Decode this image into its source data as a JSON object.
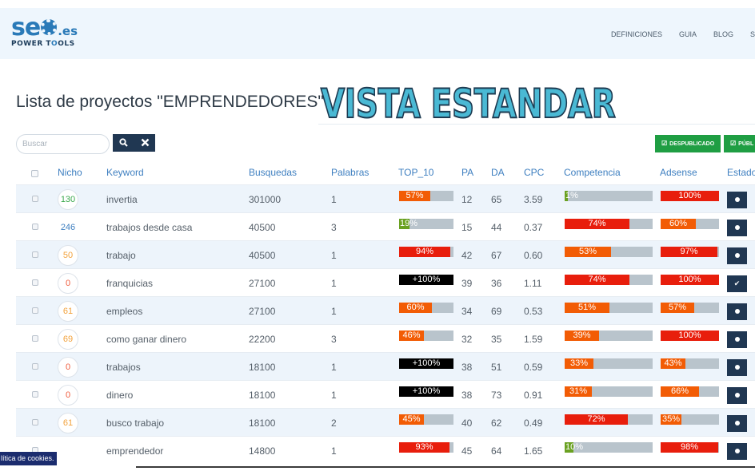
{
  "colors": {
    "navy": "#203752",
    "green": "#1f9e43",
    "link_blue": "#3e7fc0",
    "red": "#e81e0c",
    "orange": "#f25c05",
    "black": "#000000",
    "olive": "#6aa121",
    "track": "#b9c4cc"
  },
  "logo": {
    "seo": "se",
    "tld": ".es",
    "sub_a": "POWER T",
    "sub_b": "OLS"
  },
  "nav": [
    "DEFINICIONES",
    "GUIA",
    "BLOG",
    "SE"
  ],
  "title": "Lista de proyectos \"EMPRENDEDORES\"",
  "overlay": "VISTA ESTANDAR",
  "search": {
    "placeholder": "Buscar",
    "search_icon": "search-icon",
    "clear_icon": "close-icon"
  },
  "buttons": {
    "despublicado": "DESPUBLICADO",
    "publicado": "PÚBL"
  },
  "headers": {
    "nicho": "Nicho",
    "keyword": "Keyword",
    "busquedas": "Busquedas",
    "palabras": "Palabras",
    "top10": "TOP_10",
    "pa": "PA",
    "da": "DA",
    "cpc": "CPC",
    "competencia": "Competencia",
    "adsense": "Adsense",
    "estado": "Estado"
  },
  "rows": [
    {
      "nicho": "130",
      "nicho_color": "#3aa84b",
      "keyword": "invertia",
      "busquedas": "301000",
      "palabras": "1",
      "top10": {
        "label": "57%",
        "value": 57,
        "color": "#f25c05"
      },
      "pa": "12",
      "da": "65",
      "cpc": "3.59",
      "competencia": {
        "label": "1%",
        "value": 1,
        "color": "#6aa121"
      },
      "adsense": {
        "label": "100%",
        "value": 100,
        "color": "#e81e0c"
      },
      "estado": "dot"
    },
    {
      "nicho": "246",
      "nicho_color": "#3e7fc0",
      "keyword": "trabajos desde casa",
      "busquedas": "40500",
      "palabras": "3",
      "top10": {
        "label": "19%",
        "value": 19,
        "color": "#6aa121"
      },
      "pa": "15",
      "da": "44",
      "cpc": "0.37",
      "competencia": {
        "label": "74%",
        "value": 74,
        "color": "#e81e0c"
      },
      "adsense": {
        "label": "60%",
        "value": 60,
        "color": "#f25c05"
      },
      "estado": "dot"
    },
    {
      "nicho": "50",
      "nicho_color": "#f2a23c",
      "keyword": "trabajo",
      "busquedas": "40500",
      "palabras": "1",
      "top10": {
        "label": "94%",
        "value": 94,
        "color": "#e81e0c"
      },
      "pa": "42",
      "da": "67",
      "cpc": "0.60",
      "competencia": {
        "label": "53%",
        "value": 53,
        "color": "#f25c05"
      },
      "adsense": {
        "label": "97%",
        "value": 97,
        "color": "#e81e0c"
      },
      "estado": "dot"
    },
    {
      "nicho": "0",
      "nicho_color": "#ef5b3c",
      "keyword": "franquicias",
      "busquedas": "27100",
      "palabras": "1",
      "top10": {
        "label": "+100%",
        "value": 100,
        "color": "#000000"
      },
      "pa": "39",
      "da": "36",
      "cpc": "1.11",
      "competencia": {
        "label": "74%",
        "value": 74,
        "color": "#e81e0c"
      },
      "adsense": {
        "label": "100%",
        "value": 100,
        "color": "#e81e0c"
      },
      "estado": "check"
    },
    {
      "nicho": "61",
      "nicho_color": "#f2a23c",
      "keyword": "empleos",
      "busquedas": "27100",
      "palabras": "1",
      "top10": {
        "label": "60%",
        "value": 60,
        "color": "#f25c05"
      },
      "pa": "34",
      "da": "69",
      "cpc": "0.53",
      "competencia": {
        "label": "51%",
        "value": 51,
        "color": "#f25c05"
      },
      "adsense": {
        "label": "57%",
        "value": 57,
        "color": "#f25c05"
      },
      "estado": "dot"
    },
    {
      "nicho": "69",
      "nicho_color": "#f2a23c",
      "keyword": "como ganar dinero",
      "busquedas": "22200",
      "palabras": "3",
      "top10": {
        "label": "46%",
        "value": 46,
        "color": "#f25c05"
      },
      "pa": "32",
      "da": "35",
      "cpc": "1.59",
      "competencia": {
        "label": "39%",
        "value": 39,
        "color": "#f25c05"
      },
      "adsense": {
        "label": "100%",
        "value": 100,
        "color": "#e81e0c"
      },
      "estado": "dot"
    },
    {
      "nicho": "0",
      "nicho_color": "#ef5b3c",
      "keyword": "trabajos",
      "busquedas": "18100",
      "palabras": "1",
      "top10": {
        "label": "+100%",
        "value": 100,
        "color": "#000000"
      },
      "pa": "38",
      "da": "51",
      "cpc": "0.59",
      "competencia": {
        "label": "33%",
        "value": 33,
        "color": "#f25c05"
      },
      "adsense": {
        "label": "43%",
        "value": 43,
        "color": "#f25c05"
      },
      "estado": "dot"
    },
    {
      "nicho": "0",
      "nicho_color": "#ef5b3c",
      "keyword": "dinero",
      "busquedas": "18100",
      "palabras": "1",
      "top10": {
        "label": "+100%",
        "value": 100,
        "color": "#000000"
      },
      "pa": "38",
      "da": "73",
      "cpc": "0.91",
      "competencia": {
        "label": "31%",
        "value": 31,
        "color": "#f25c05"
      },
      "adsense": {
        "label": "66%",
        "value": 66,
        "color": "#f25c05"
      },
      "estado": "dot"
    },
    {
      "nicho": "61",
      "nicho_color": "#f2a23c",
      "keyword": "busco trabajo",
      "busquedas": "18100",
      "palabras": "2",
      "top10": {
        "label": "45%",
        "value": 45,
        "color": "#f25c05"
      },
      "pa": "40",
      "da": "62",
      "cpc": "0.49",
      "competencia": {
        "label": "72%",
        "value": 72,
        "color": "#e81e0c"
      },
      "adsense": {
        "label": "35%",
        "value": 35,
        "color": "#f25c05"
      },
      "estado": "dot"
    },
    {
      "nicho": "",
      "nicho_color": "#f2a23c",
      "keyword": "emprendedor",
      "busquedas": "14800",
      "palabras": "1",
      "top10": {
        "label": "93%",
        "value": 93,
        "color": "#e81e0c"
      },
      "pa": "45",
      "da": "64",
      "cpc": "1.65",
      "competencia": {
        "label": "10%",
        "value": 10,
        "color": "#6aa121"
      },
      "adsense": {
        "label": "98%",
        "value": 98,
        "color": "#e81e0c"
      },
      "estado": "dot"
    }
  ],
  "cookie": "lítica de cookies."
}
